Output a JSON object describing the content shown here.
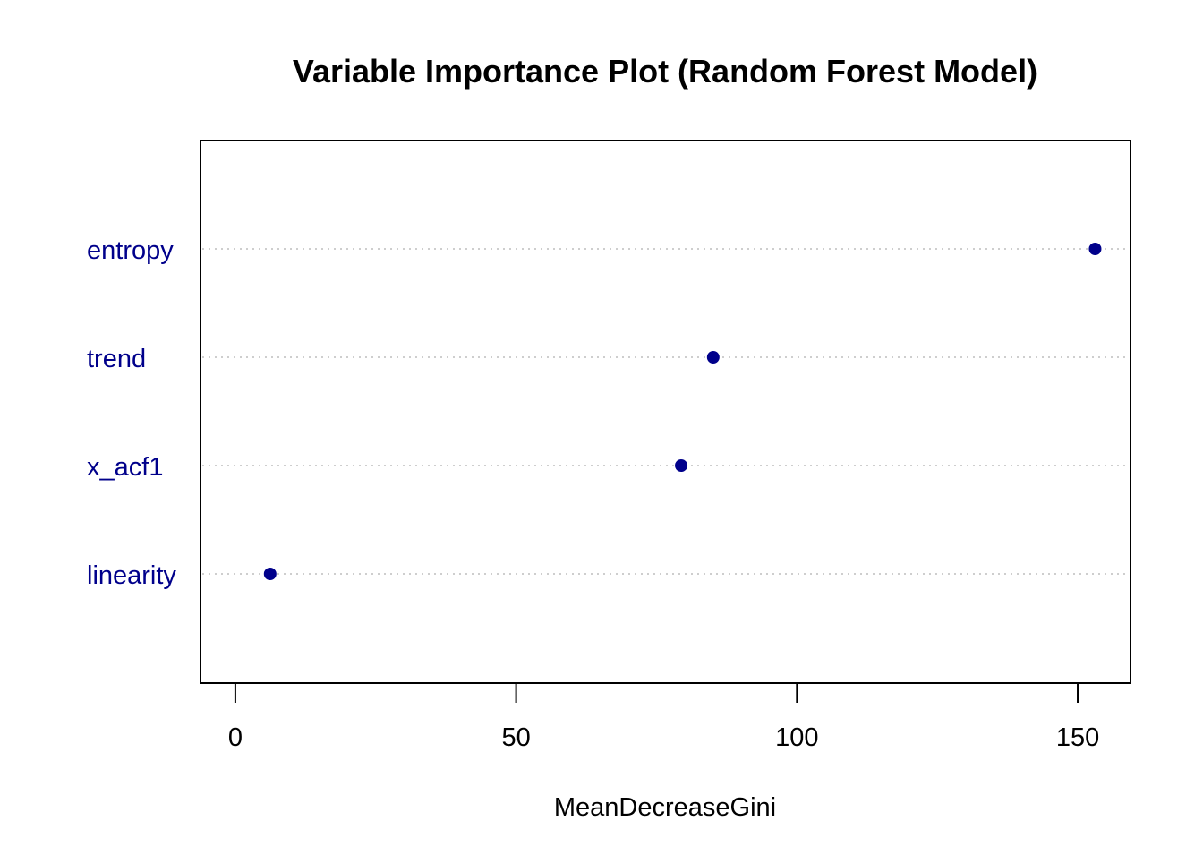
{
  "chart_data": {
    "type": "scatter",
    "title": "Variable Importance Plot (Random Forest Model)",
    "xlabel": "MeanDecreaseGini",
    "ylabel": "",
    "categories": [
      "entropy",
      "trend",
      "x_acf1",
      "linearity"
    ],
    "values": [
      153.1,
      85.1,
      79.4,
      6.2
    ],
    "xlim": [
      -6.2,
      159.4
    ],
    "xticks": [
      0,
      50,
      100,
      150
    ],
    "grid": "horizontal-dotted",
    "legend": "none"
  },
  "colors": {
    "point": "#00008B",
    "category_label": "#00008B",
    "grid": "#BEBEBE",
    "axis": "#000000"
  }
}
